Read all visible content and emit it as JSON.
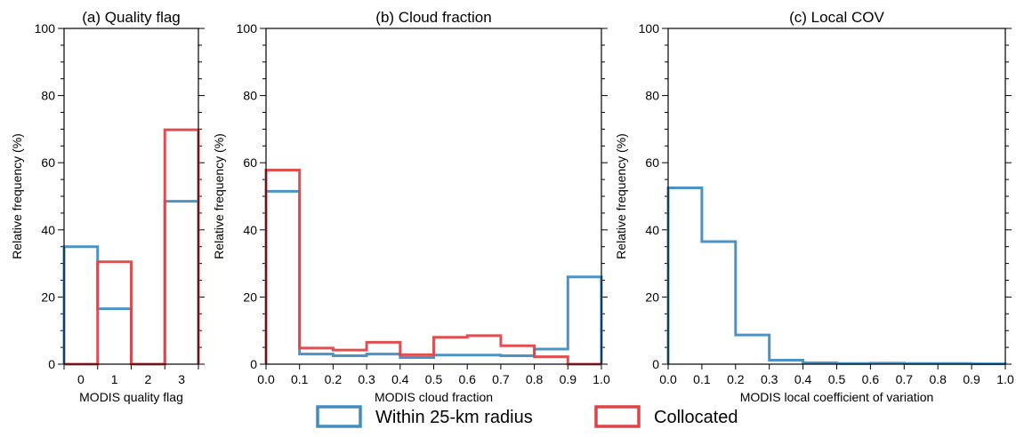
{
  "chart_data": [
    {
      "type": "histogram-step",
      "title": "(a) Quality flag",
      "xlabel": "MODIS quality flag",
      "ylabel": "Relative frequency (%)",
      "ylim": [
        0,
        100
      ],
      "yticks": [
        0,
        20,
        40,
        60,
        80,
        100
      ],
      "categories": [
        "0",
        "1",
        "2",
        "3"
      ],
      "xlim": [
        -0.5,
        3.5
      ],
      "series": [
        {
          "key": "within",
          "values": [
            35,
            16.5,
            0,
            48.5
          ]
        },
        {
          "key": "collocated",
          "values": [
            0,
            30.5,
            0,
            69.8
          ]
        }
      ]
    },
    {
      "type": "histogram-step",
      "title": "(b) Cloud fraction",
      "xlabel": "MODIS cloud fraction",
      "ylabel": "Relative frequency (%)",
      "ylim": [
        0,
        100
      ],
      "yticks": [
        0,
        20,
        40,
        60,
        80,
        100
      ],
      "xlim": [
        0.0,
        1.0
      ],
      "xticks": [
        "0.0",
        "0.1",
        "0.2",
        "0.3",
        "0.4",
        "0.5",
        "0.6",
        "0.7",
        "0.8",
        "0.9",
        "1.0"
      ],
      "bin_edges": [
        0.0,
        0.1,
        0.2,
        0.3,
        0.4,
        0.5,
        0.6,
        0.7,
        0.8,
        0.9,
        1.0
      ],
      "series": [
        {
          "key": "within",
          "values": [
            51.5,
            3.0,
            2.5,
            3.0,
            2.0,
            2.7,
            2.7,
            2.5,
            4.5,
            26.0
          ]
        },
        {
          "key": "collocated",
          "values": [
            57.8,
            4.8,
            4.2,
            6.5,
            2.8,
            8.0,
            8.5,
            5.5,
            2.2,
            0.0
          ]
        }
      ]
    },
    {
      "type": "histogram-step",
      "title": "(c) Local COV",
      "xlabel": "MODIS local coefficient of variation",
      "ylabel": "Relative frequency (%)",
      "ylim": [
        0,
        100
      ],
      "yticks": [
        0,
        20,
        40,
        60,
        80,
        100
      ],
      "xlim": [
        0.0,
        1.0
      ],
      "xticks": [
        "0.0",
        "0.1",
        "0.2",
        "0.3",
        "0.4",
        "0.5",
        "0.6",
        "0.7",
        "0.8",
        "0.9",
        "1.0"
      ],
      "bin_edges": [
        0.0,
        0.1,
        0.2,
        0.3,
        0.4,
        0.5,
        0.6,
        0.7,
        0.8,
        0.9,
        1.0
      ],
      "series": [
        {
          "key": "within",
          "values": [
            52.5,
            36.5,
            8.7,
            1.2,
            0.4,
            0.2,
            0.3,
            0.2,
            0.2,
            0.1
          ]
        }
      ]
    }
  ],
  "legend": {
    "position": "bottom-center",
    "items": [
      {
        "key": "within",
        "label": "Within 25-km radius",
        "color": "#3f8dc4"
      },
      {
        "key": "collocated",
        "label": "Collocated",
        "color": "#e04347"
      }
    ]
  }
}
